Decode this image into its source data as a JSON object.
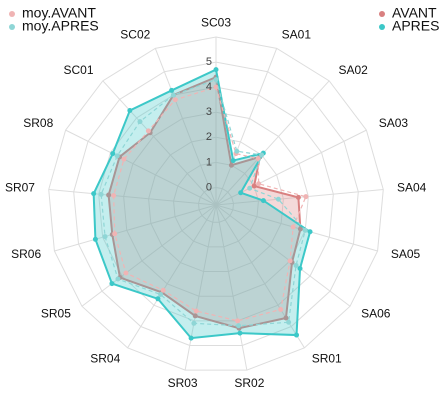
{
  "chart_data": {
    "type": "radar",
    "categories": [
      "SC03",
      "SA01",
      "SA02",
      "SA03",
      "SA04",
      "SA05",
      "SA06",
      "SR01",
      "SR02",
      "SR03",
      "SR04",
      "SR05",
      "SR06",
      "SR07",
      "SR08",
      "SC01",
      "SC02"
    ],
    "series": [
      {
        "name": "AVANT",
        "color": "#d98080",
        "dashed": false,
        "values": [
          4.4,
          1.0,
          1.9,
          1.0,
          2.6,
          2.8,
          3.1,
          4.6,
          4.3,
          3.8,
          3.4,
          4.1,
          3.6,
          3.6,
          3.6,
          3.2,
          4.0
        ]
      },
      {
        "name": "APRES",
        "color": "#3cc8c8",
        "dashed": false,
        "values": [
          4.7,
          1.2,
          2.1,
          0.4,
          1.2,
          3.2,
          3.5,
          5.4,
          4.5,
          4.7,
          3.7,
          4.5,
          4.3,
          4.2,
          3.9,
          4.4,
          4.2
        ]
      },
      {
        "name": "moy.AVANT",
        "color": "#f0b4b4",
        "dashed": true,
        "values": [
          4.0,
          1.5,
          1.8,
          1.2,
          2.9,
          2.5,
          3.0,
          4.2,
          4.0,
          3.6,
          3.3,
          3.8,
          3.5,
          3.4,
          3.4,
          3.3,
          3.8
        ]
      },
      {
        "name": "moy.APRES",
        "color": "#8fd6d6",
        "dashed": true,
        "values": [
          4.3,
          1.6,
          2.0,
          0.8,
          1.8,
          3.0,
          3.3,
          4.8,
          4.2,
          4.1,
          3.5,
          4.2,
          3.9,
          3.9,
          3.7,
          3.8,
          4.0
        ]
      }
    ],
    "ylim": [
      -0.7,
      6
    ],
    "yticks": [
      0,
      1,
      2,
      3,
      4,
      5
    ],
    "grid": true
  }
}
